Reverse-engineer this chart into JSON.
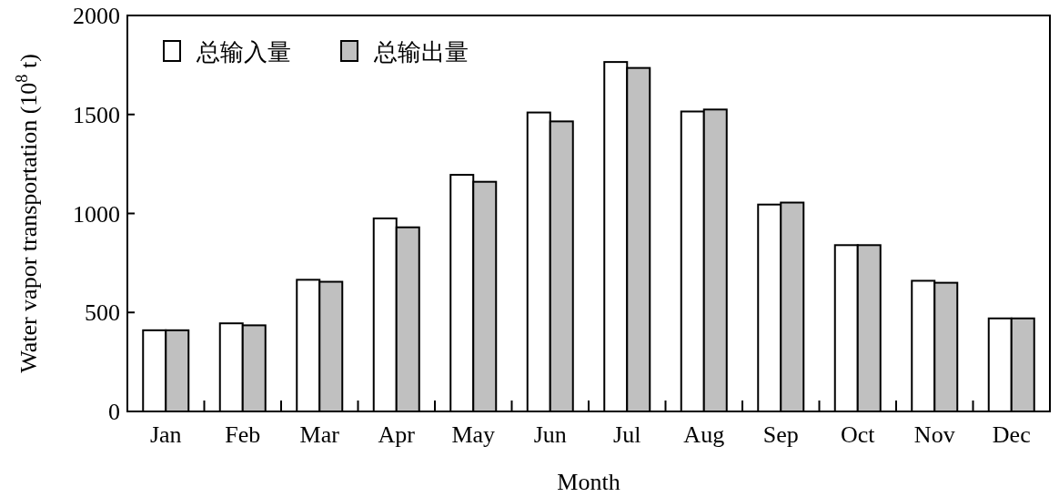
{
  "chart_data": {
    "type": "bar",
    "xlabel": "Month",
    "ylabel": "Water vapor transportation (10$^{8}$ t)",
    "categories": [
      "Jan",
      "Feb",
      "Mar",
      "Apr",
      "May",
      "Jun",
      "Jul",
      "Aug",
      "Sep",
      "Oct",
      "Nov",
      "Dec"
    ],
    "series": [
      {
        "name": "总输入量",
        "color": "#ffffff",
        "values": [
          410,
          445,
          665,
          975,
          1195,
          1510,
          1765,
          1515,
          1045,
          840,
          660,
          470
        ]
      },
      {
        "name": "总输出量",
        "color": "#c0c0c0",
        "values": [
          410,
          435,
          655,
          930,
          1160,
          1465,
          1735,
          1525,
          1055,
          840,
          650,
          470
        ]
      }
    ],
    "ylim": [
      0,
      2000
    ],
    "yticks": [
      0,
      500,
      1000,
      1500,
      2000
    ],
    "legend": "top left"
  }
}
